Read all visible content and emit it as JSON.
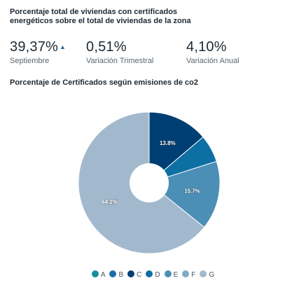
{
  "header": {
    "title": "Porcentaje total de viviendas con certificados energéticos sobre el total de viviendas de la zona"
  },
  "stats": [
    {
      "value": "39,37%",
      "label": "Septiembre",
      "trend_icon": "caret-up-icon"
    },
    {
      "value": "0,51%",
      "label": "Variación Trimestral"
    },
    {
      "value": "4,10%",
      "label": "Variación Anual"
    }
  ],
  "chart_data": {
    "type": "pie",
    "title": "Porcentaje de Certificados según emisiones de co2",
    "donut": true,
    "slices": [
      {
        "name": "A",
        "value": 0.0,
        "color": "#138f9a",
        "label": ""
      },
      {
        "name": "B",
        "value": 0.0,
        "color": "#1a6ea8",
        "label": ""
      },
      {
        "name": "C",
        "value": 13.8,
        "color": "#003f73",
        "label": "13.8%"
      },
      {
        "name": "D",
        "value": 6.3,
        "color": "#0d6fa3",
        "label": ""
      },
      {
        "name": "E",
        "value": 15.7,
        "color": "#4b8fb7",
        "label": "15.7%"
      },
      {
        "name": "F",
        "value": 0.0,
        "color": "#7fa9c6",
        "label": ""
      },
      {
        "name": "G",
        "value": 64.2,
        "color": "#a2b9cd",
        "label": "64.2%"
      }
    ],
    "legend": [
      "A",
      "B",
      "C",
      "D",
      "E",
      "F",
      "G"
    ],
    "legend_placement": "bottom"
  }
}
